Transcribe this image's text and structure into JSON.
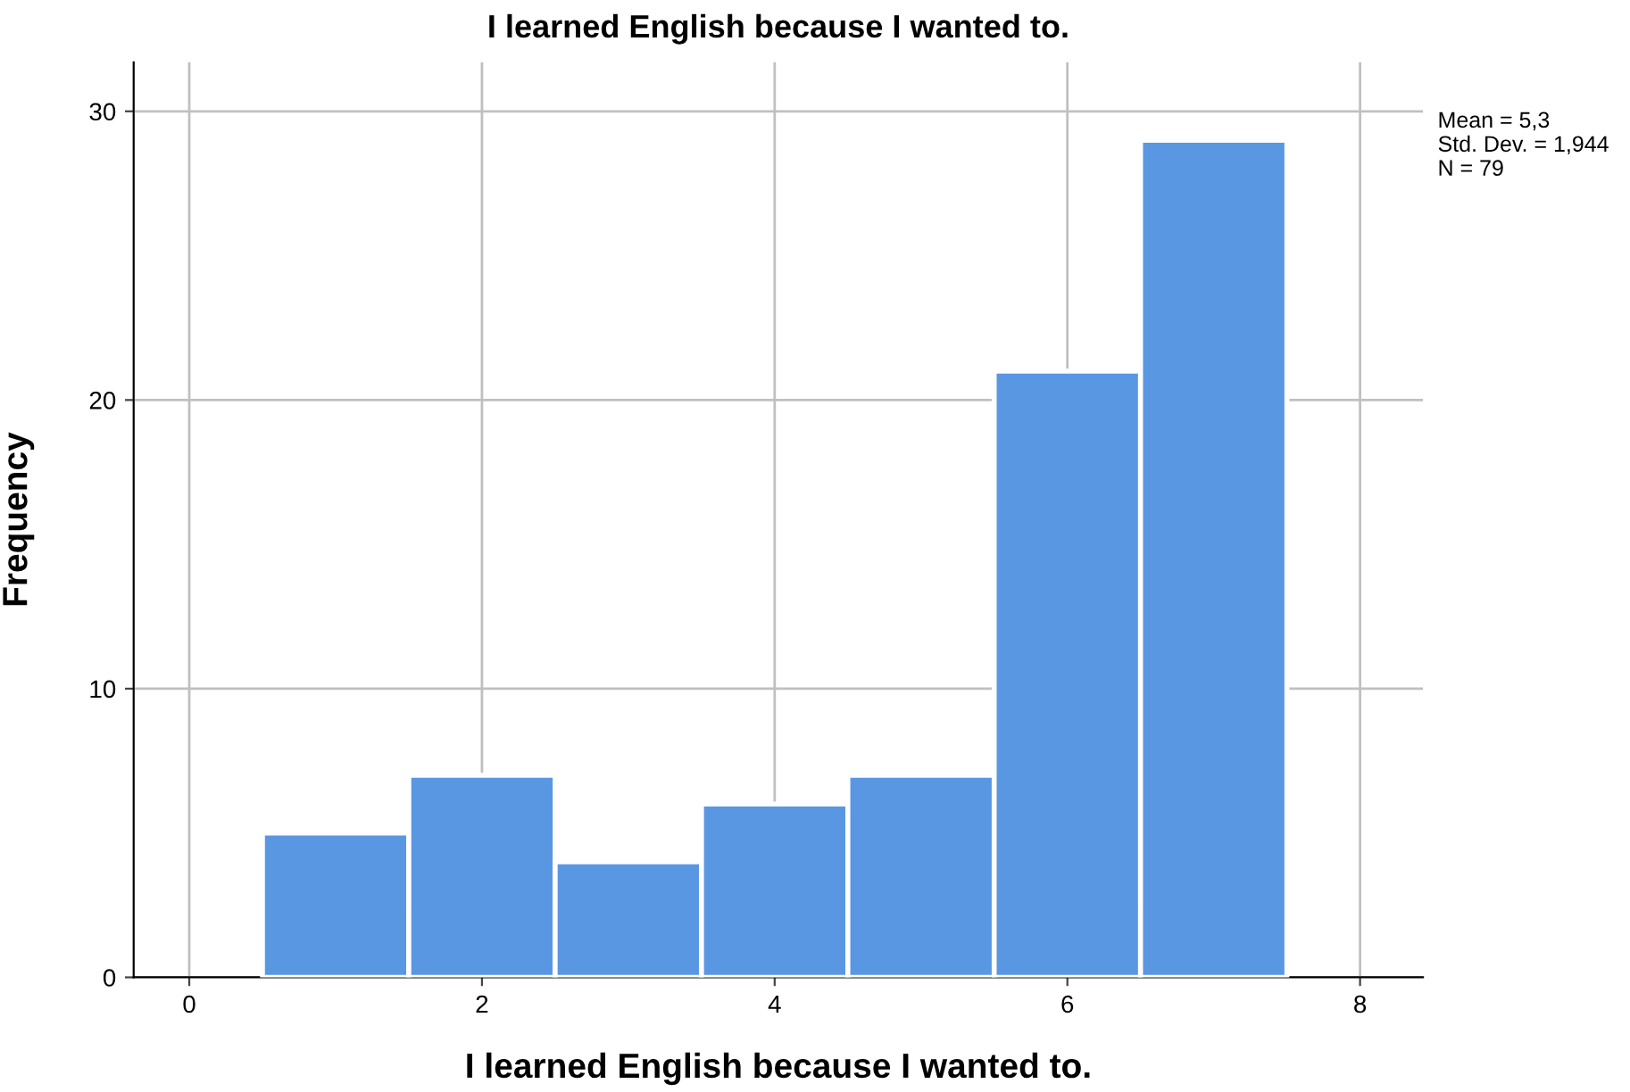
{
  "chart_data": {
    "type": "histogram",
    "title": "I learned English because I wanted to.",
    "xlabel": "I learned English because I wanted to.",
    "ylabel": "Frequency",
    "bins": [
      0.5,
      1.5,
      2.5,
      3.5,
      4.5,
      5.5,
      6.5,
      7.5
    ],
    "values": [
      5,
      7,
      4,
      6,
      7,
      21,
      29
    ],
    "color": "#5a97e3",
    "xlim": [
      -0.38,
      8.43
    ],
    "ylim": [
      0,
      31.7
    ],
    "xticks": [
      0,
      2,
      4,
      6,
      8
    ],
    "yticks": [
      0,
      10,
      20,
      30
    ],
    "grid": true,
    "annotations": [
      "Mean = 5,3\nStd. Dev. = 1,944\nN = 79"
    ]
  }
}
